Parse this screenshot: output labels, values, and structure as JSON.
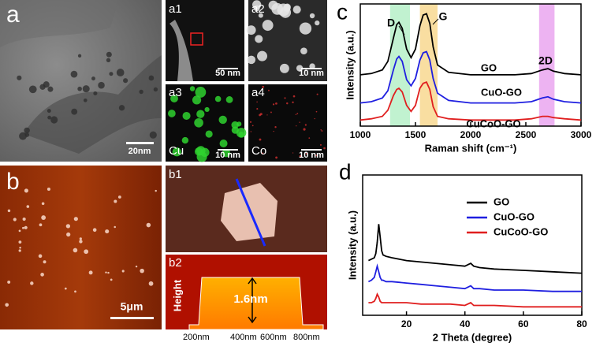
{
  "panels": {
    "a": {
      "label": "a",
      "scale": "20nm"
    },
    "a1": {
      "label": "a1",
      "scale": "50 nm"
    },
    "a2": {
      "label": "a2",
      "scale": "10 nm"
    },
    "a3": {
      "label": "a3",
      "scale": "10 nm",
      "element": "Cu"
    },
    "a4": {
      "label": "a4",
      "scale": "10 nm",
      "element": "Co"
    },
    "b": {
      "label": "b",
      "scale": "5μm"
    },
    "b1": {
      "label": "b1"
    },
    "b2": {
      "label": "b2",
      "y_label": "Height",
      "annotation": "1.6nm",
      "ticks": [
        "200nm",
        "400nm",
        "600nm",
        "800nm"
      ]
    }
  },
  "chart_data": [
    {
      "type": "line",
      "panel_label": "c",
      "x_label": "Raman shift (cm⁻¹)",
      "y_label": "Intensity (a.u.)",
      "x": [
        1000,
        1100,
        1200,
        1250,
        1300,
        1330,
        1350,
        1380,
        1420,
        1460,
        1500,
        1540,
        1570,
        1600,
        1630,
        1660,
        1700,
        1800,
        2000,
        2200,
        2400,
        2550,
        2650,
        2700,
        2750,
        2850,
        3000
      ],
      "series": [
        {
          "name": "GO",
          "color": "#000000",
          "values": [
            4.2,
            4.3,
            4.6,
            5.3,
            7.2,
            8.3,
            8.5,
            8.0,
            6.3,
            5.6,
            6.3,
            8.2,
            9.1,
            9.2,
            8.4,
            6.5,
            5.0,
            4.4,
            4.2,
            4.2,
            4.2,
            4.3,
            4.6,
            4.7,
            4.5,
            4.3,
            4.2
          ]
        },
        {
          "name": "CuO-GO",
          "color": "#1f1fe0",
          "values": [
            1.9,
            2.0,
            2.3,
            2.9,
            4.6,
            5.5,
            5.7,
            5.3,
            3.8,
            3.3,
            3.9,
            5.4,
            6.0,
            6.1,
            5.4,
            3.9,
            2.7,
            2.1,
            1.9,
            1.9,
            1.9,
            2.0,
            2.3,
            2.4,
            2.2,
            2.0,
            1.9
          ]
        },
        {
          "name": "CuCoO-GO",
          "color": "#e01f1f",
          "values": [
            0.5,
            0.6,
            0.8,
            1.3,
            2.5,
            3.0,
            3.1,
            2.8,
            1.7,
            1.2,
            1.7,
            3.1,
            3.5,
            3.6,
            3.0,
            1.6,
            0.8,
            0.6,
            0.5,
            0.5,
            0.5,
            0.6,
            0.8,
            0.8,
            0.7,
            0.6,
            0.5
          ]
        }
      ],
      "bands": [
        {
          "label": "D",
          "range": [
            1270,
            1450
          ],
          "color": "#b6f0c8"
        },
        {
          "label": "G",
          "range": [
            1540,
            1700
          ],
          "color": "#f8d890"
        },
        {
          "label": "2D",
          "range": [
            2620,
            2760
          ],
          "color": "#eaa6f0"
        }
      ],
      "xlim": [
        1000,
        3000
      ],
      "xticks": [
        1000,
        1500,
        2000,
        2500,
        3000
      ],
      "ylim": [
        0,
        10
      ]
    },
    {
      "type": "line",
      "panel_label": "d",
      "x_label": "2 Theta (degree)",
      "y_label": "Intensity (a.u.)",
      "x": [
        7,
        8,
        9,
        9.5,
        10,
        10.5,
        11,
        11.5,
        12,
        13,
        15,
        20,
        25,
        30,
        35,
        40,
        42,
        43,
        45,
        50,
        60,
        70,
        80
      ],
      "series": [
        {
          "name": "GO",
          "color": "#000000",
          "values": [
            3.9,
            4.0,
            4.1,
            4.4,
            5.2,
            6.5,
            5.6,
            4.6,
            4.3,
            4.2,
            4.1,
            3.9,
            3.8,
            3.7,
            3.6,
            3.5,
            3.7,
            3.5,
            3.4,
            3.3,
            3.2,
            3.1,
            3.0
          ]
        },
        {
          "name": "CuO-GO",
          "color": "#1f1fe0",
          "values": [
            2.4,
            2.5,
            2.7,
            3.1,
            3.5,
            3.1,
            2.7,
            2.5,
            2.5,
            2.4,
            2.4,
            2.3,
            2.2,
            2.1,
            2.0,
            1.9,
            2.1,
            1.9,
            1.9,
            1.8,
            1.8,
            1.7,
            1.7
          ]
        },
        {
          "name": "CuCoO-GO",
          "color": "#e01f1f",
          "values": [
            0.9,
            0.9,
            1.0,
            1.2,
            1.5,
            1.3,
            1.0,
            0.9,
            0.9,
            0.9,
            0.9,
            0.9,
            0.8,
            0.8,
            0.8,
            0.7,
            0.9,
            0.7,
            0.7,
            0.7,
            0.6,
            0.6,
            0.6
          ]
        }
      ],
      "xlim": [
        5,
        80
      ],
      "xticks": [
        20,
        40,
        60,
        80
      ],
      "ylim": [
        0,
        10
      ],
      "legend": "top-right"
    }
  ]
}
